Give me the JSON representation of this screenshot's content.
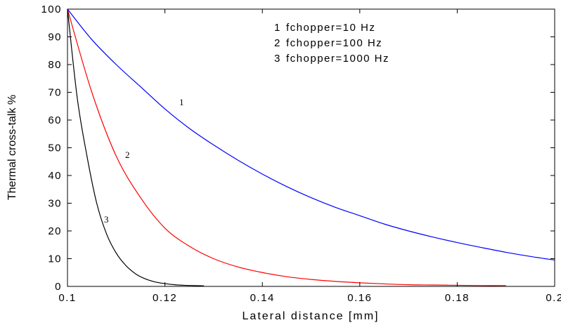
{
  "chart_data": {
    "type": "line",
    "xlabel": "Lateral distance [mm]",
    "ylabel": "Thermal cross-talk %",
    "xlim": [
      0.1,
      0.2
    ],
    "ylim": [
      0,
      100
    ],
    "x_ticks": [
      "0.1",
      "0.12",
      "0.14",
      "0.16",
      "0.18",
      "0.2"
    ],
    "y_ticks": [
      "0",
      "10",
      "20",
      "30",
      "40",
      "50",
      "60",
      "70",
      "80",
      "90",
      "100"
    ],
    "grid": false,
    "legend_position": "top-right",
    "legend": [
      {
        "number": "1",
        "text": "fchopper=10 Hz"
      },
      {
        "number": "2",
        "text": "fchopper=100 Hz"
      },
      {
        "number": "3",
        "text": "fchopper=1000 Hz"
      }
    ],
    "series": [
      {
        "name": "fchopper=10 Hz",
        "curve_label": "1",
        "color": "#0000ff",
        "x": [
          0.1,
          0.105,
          0.11,
          0.115,
          0.12,
          0.125,
          0.13,
          0.135,
          0.14,
          0.145,
          0.15,
          0.155,
          0.16,
          0.165,
          0.17,
          0.175,
          0.18,
          0.185,
          0.19,
          0.195,
          0.2
        ],
        "y": [
          100,
          89,
          80,
          72,
          64,
          57,
          51,
          45.5,
          40.5,
          36,
          32,
          28.5,
          25.5,
          22.5,
          20,
          17.8,
          15.8,
          14,
          12.3,
          10.8,
          9.5
        ]
      },
      {
        "name": "fchopper=100 Hz",
        "curve_label": "2",
        "color": "#ff0000",
        "x": [
          0.1,
          0.105,
          0.11,
          0.115,
          0.12,
          0.125,
          0.13,
          0.135,
          0.14,
          0.145,
          0.15,
          0.155,
          0.16,
          0.165,
          0.17,
          0.175,
          0.18,
          0.185,
          0.19
        ],
        "y": [
          100,
          70,
          47,
          32,
          21,
          14.5,
          10,
          7,
          5,
          3.5,
          2.5,
          1.8,
          1.3,
          0.9,
          0.6,
          0.5,
          0.4,
          0.3,
          0.3
        ]
      },
      {
        "name": "fchopper=1000 Hz",
        "curve_label": "3",
        "color": "#000000",
        "x": [
          0.1,
          0.102,
          0.104,
          0.106,
          0.108,
          0.11,
          0.112,
          0.114,
          0.116,
          0.118,
          0.12,
          0.122,
          0.124,
          0.126,
          0.128
        ],
        "y": [
          100,
          68,
          47,
          30,
          19,
          12,
          7.5,
          4.5,
          2.7,
          1.6,
          1,
          0.6,
          0.4,
          0.3,
          0.2
        ]
      }
    ]
  }
}
